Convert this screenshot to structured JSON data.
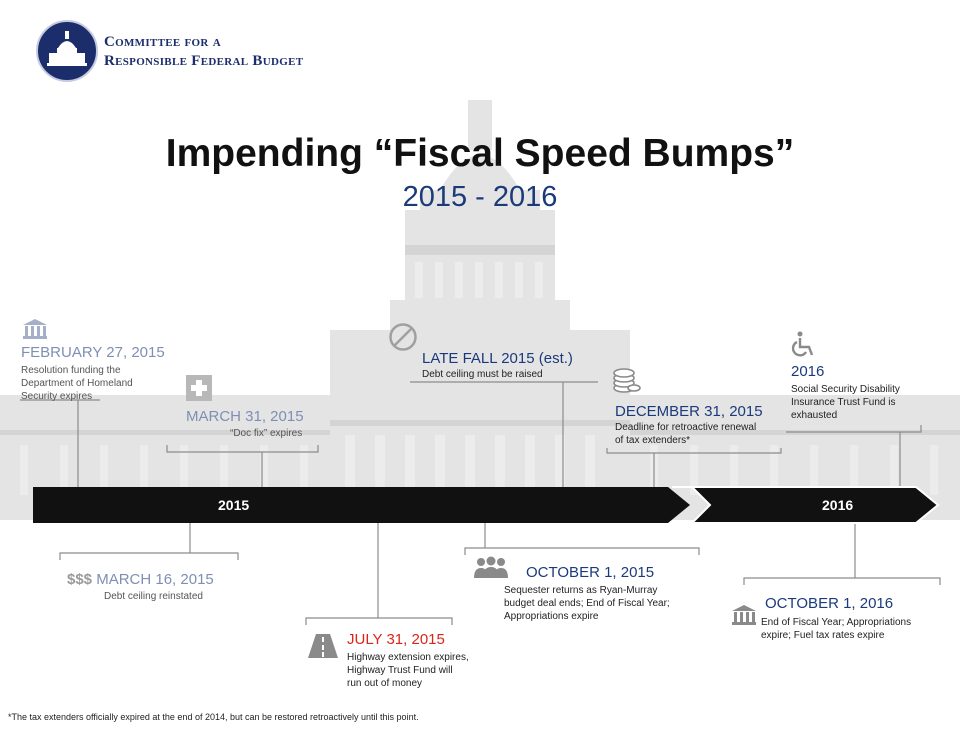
{
  "logo": {
    "line1": "Committee for a",
    "line2": "Responsible Federal Budget"
  },
  "title": "Impending “Fiscal Speed Bumps”",
  "subtitle": "2015 - 2016",
  "timeline": {
    "year1": "2015",
    "year2": "2016"
  },
  "events": {
    "feb27": {
      "date": "FEBRUARY 27, 2015",
      "desc": [
        "Resolution funding the",
        "Department of Homeland",
        "Security expires"
      ],
      "icon": "bank-icon"
    },
    "mar31": {
      "date": "MARCH 31, 2015",
      "desc": "“Doc fix” expires",
      "icon": "medical-cross-icon"
    },
    "latefall": {
      "date": "LATE FALL 2015 (est.)",
      "desc": "Debt ceiling must be raised",
      "icon": "no-sign-icon"
    },
    "dec31": {
      "date": "DECEMBER 31, 2015",
      "desc": [
        "Deadline for retroactive renewal",
        "of tax extenders*"
      ],
      "icon": "coins-icon"
    },
    "y2016": {
      "date": "2016",
      "desc": [
        "Social Security Disability",
        "Insurance Trust Fund is",
        "exhausted"
      ],
      "icon": "wheelchair-icon"
    },
    "mar16": {
      "prefix": "$$$",
      "date": "MARCH 16, 2015",
      "desc": "Debt ceiling reinstated"
    },
    "jul31": {
      "date": "JULY 31, 2015",
      "desc": [
        "Highway extension expires,",
        "Highway Trust Fund will",
        "run out of money"
      ],
      "icon": "road-icon"
    },
    "oct1_2015": {
      "date": "OCTOBER 1, 2015",
      "desc": [
        "Sequester returns as Ryan-Murray",
        "budget deal ends; End of Fiscal Year;",
        "Appropriations expire"
      ],
      "icon": "people-icon"
    },
    "oct1_2016": {
      "date": "OCTOBER 1, 2016",
      "desc": [
        "End of Fiscal Year; Appropriations",
        "expire; Fuel tax rates expire"
      ],
      "icon": "bank-icon"
    }
  },
  "footnote": "*The tax extenders officially expired at the end of 2014, but can be restored retroactively until this point.",
  "colors": {
    "navy": "#1b3a7a",
    "faded_navy": "#7f8fb4",
    "faded_gray": "#9a9a9a",
    "red": "#d9261c",
    "bar": "#111111"
  }
}
